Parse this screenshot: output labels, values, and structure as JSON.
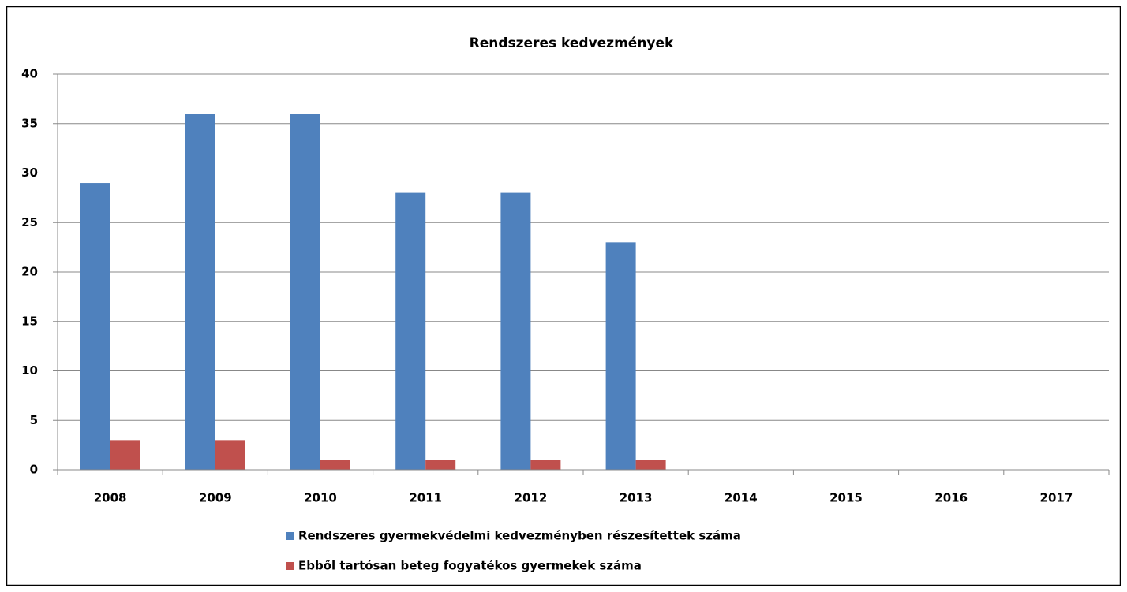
{
  "chart_data": {
    "type": "bar",
    "title": "Rendszeres kedvezmények",
    "categories": [
      "2008",
      "2009",
      "2010",
      "2011",
      "2012",
      "2013",
      "2014",
      "2015",
      "2016",
      "2017"
    ],
    "series": [
      {
        "name": "Rendszeres gyermekvédelmi kedvezményben részesítettek száma",
        "color": "#4f81bd",
        "values": [
          29,
          36,
          36,
          28,
          28,
          23,
          null,
          null,
          null,
          null
        ]
      },
      {
        "name": "Ebből tartósan beteg fogyatékos gyermekek száma",
        "color": "#c0504d",
        "values": [
          3,
          3,
          1,
          1,
          1,
          1,
          null,
          null,
          null,
          null
        ]
      }
    ],
    "ylim": [
      0,
      40
    ],
    "yticks": [
      0,
      5,
      10,
      15,
      20,
      25,
      30,
      35,
      40
    ],
    "grid": true,
    "legend": "bottom"
  }
}
